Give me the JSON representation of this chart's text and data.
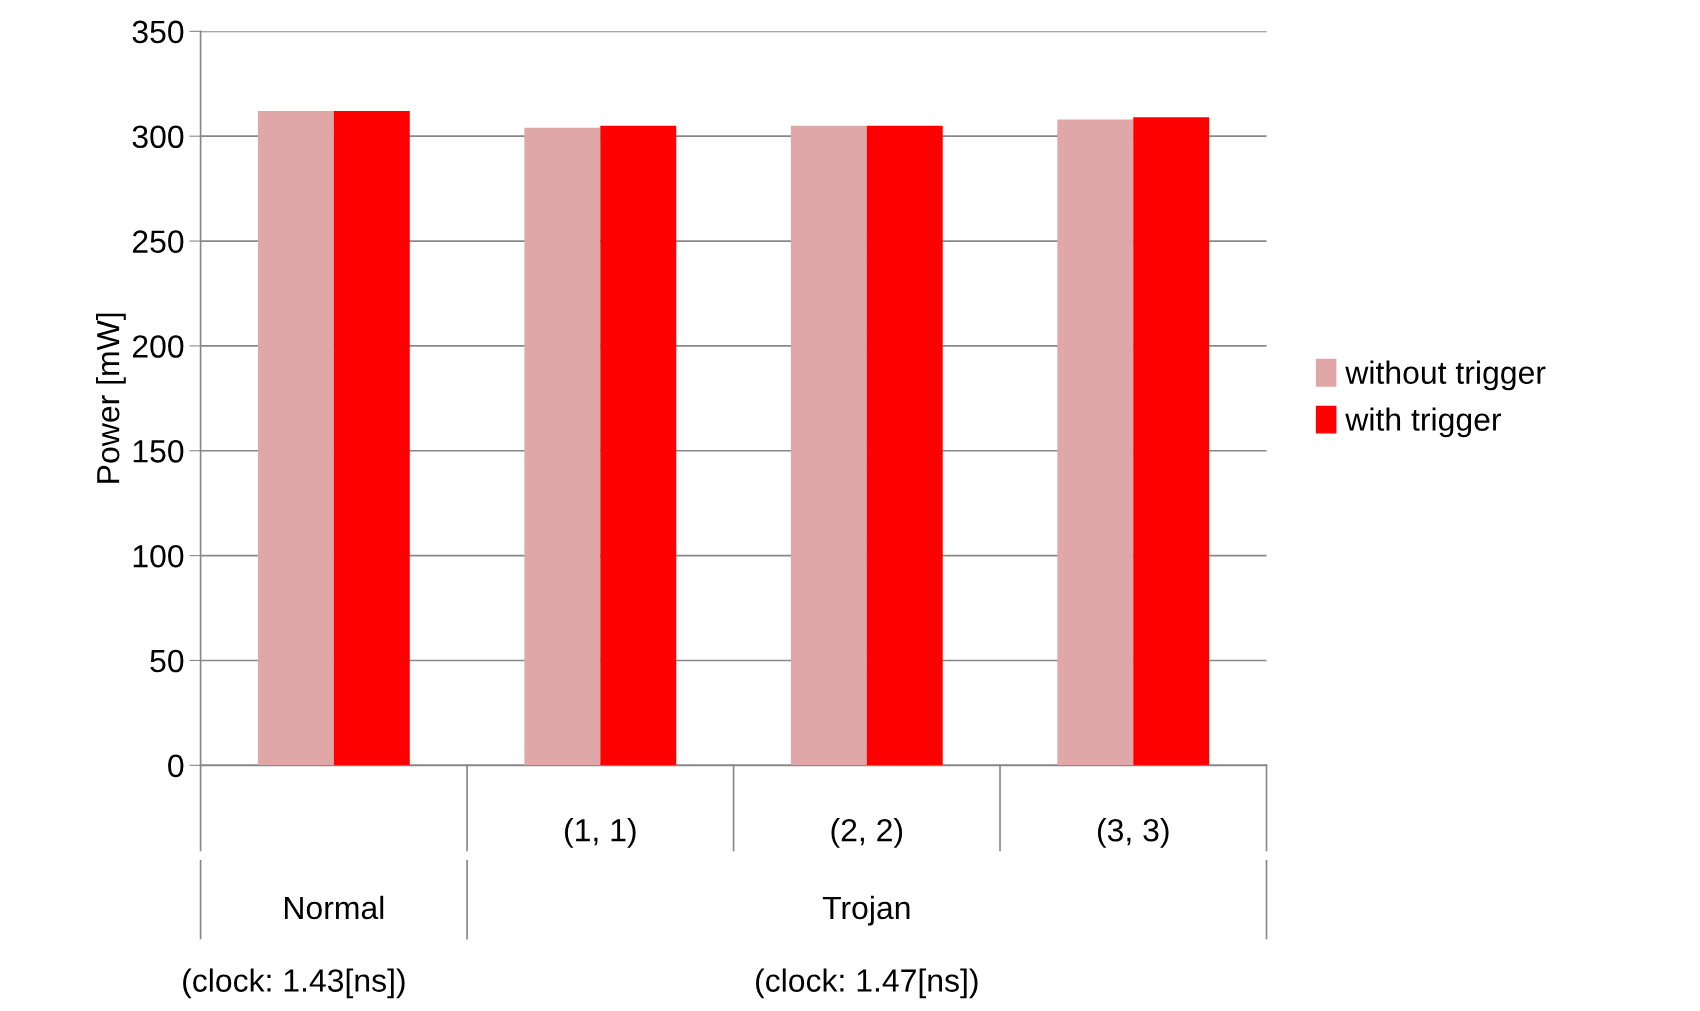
{
  "chart_data": {
    "type": "bar",
    "ylabel": "Power [mW]",
    "categories": [
      null,
      "(1, 1)",
      "(2, 2)",
      "(3, 3)"
    ],
    "series": [
      {
        "name": "without trigger",
        "color": "#e0a7a8",
        "values": [
          312,
          304,
          305,
          308
        ]
      },
      {
        "name": "with trigger",
        "color": "#ff0000",
        "values": [
          312,
          305,
          305,
          309
        ]
      }
    ],
    "ylim": [
      0,
      350
    ],
    "yticks": [
      0,
      50,
      100,
      150,
      200,
      250,
      300,
      350
    ],
    "grid": "y",
    "legend": "right",
    "annotations": [
      "Normal",
      "Trojan",
      "(clock: 1.43[ns])",
      "(clock: 1.47[ns])"
    ]
  }
}
